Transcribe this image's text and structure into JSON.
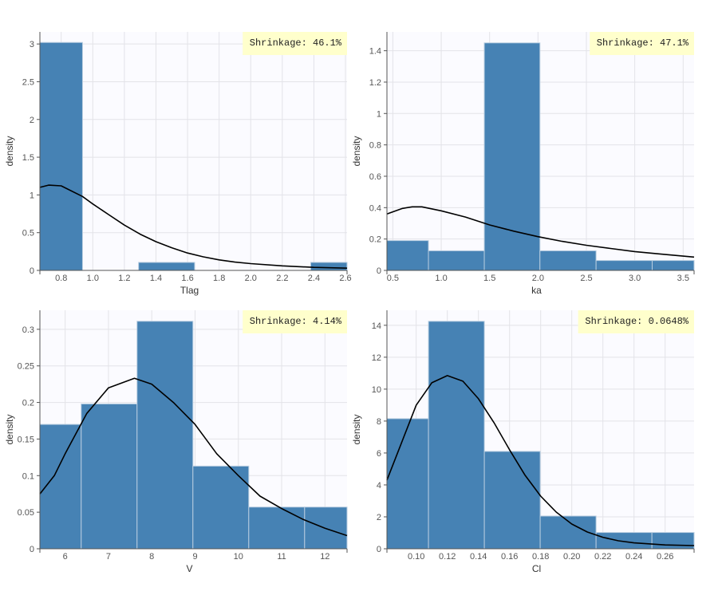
{
  "colors": {
    "bar": "#4682b4",
    "bar_edge": "#ffffff",
    "curve": "#000000",
    "plot_bg": "#fbfbff",
    "grid": "#e3e3e8",
    "shrinkage_bg": "#ffffcc"
  },
  "chart_data": [
    {
      "type": "bar",
      "xlabel": "Tlag",
      "ylabel": "density",
      "annotation": "Shrinkage: 46.1%",
      "xlim": [
        0.665,
        2.61
      ],
      "ylim": [
        0,
        3.16
      ],
      "xticks": [
        0.8,
        1.0,
        1.2,
        1.4,
        1.6,
        1.8,
        2.0,
        2.2,
        2.4,
        2.6
      ],
      "xtick_labels": [
        "0.8",
        "1.0",
        "1.2",
        "1.4",
        "1.6",
        "1.8",
        "2.0",
        "2.2",
        "2.4",
        "2.6"
      ],
      "yticks": [
        0,
        0.5,
        1,
        1.5,
        2,
        2.5,
        3
      ],
      "ytick_labels": [
        "0",
        "0.5",
        "1",
        "1.5",
        "2",
        "2.5",
        "3"
      ],
      "grid": true,
      "bins": [
        [
          0.665,
          0.935,
          3.02
        ],
        [
          1.29,
          1.645,
          0.106
        ],
        [
          2.38,
          2.61,
          0.106
        ]
      ],
      "density_curve": [
        [
          0.665,
          1.1
        ],
        [
          0.72,
          1.13
        ],
        [
          0.8,
          1.12
        ],
        [
          0.935,
          0.98
        ],
        [
          1.0,
          0.88
        ],
        [
          1.1,
          0.74
        ],
        [
          1.2,
          0.6
        ],
        [
          1.3,
          0.48
        ],
        [
          1.4,
          0.38
        ],
        [
          1.5,
          0.3
        ],
        [
          1.6,
          0.23
        ],
        [
          1.7,
          0.18
        ],
        [
          1.8,
          0.14
        ],
        [
          1.9,
          0.11
        ],
        [
          2.0,
          0.09
        ],
        [
          2.2,
          0.06
        ],
        [
          2.4,
          0.04
        ],
        [
          2.61,
          0.03
        ]
      ]
    },
    {
      "type": "bar",
      "xlabel": "ka",
      "ylabel": "density",
      "annotation": "Shrinkage: 47.1%",
      "xlim": [
        0.439,
        3.613
      ],
      "ylim": [
        0,
        1.52
      ],
      "xticks": [
        0.5,
        1.0,
        1.5,
        2.0,
        2.5,
        3.0,
        3.5
      ],
      "xtick_labels": [
        "0.5",
        "1.0",
        "1.5",
        "2.0",
        "2.5",
        "3.0",
        "3.5"
      ],
      "yticks": [
        0,
        0.2,
        0.4,
        0.6,
        0.8,
        1,
        1.2,
        1.4
      ],
      "ytick_labels": [
        "0",
        "0.2",
        "0.4",
        "0.6",
        "0.8",
        "1",
        "1.2",
        "1.4"
      ],
      "grid": true,
      "bins": [
        [
          0.439,
          0.868,
          0.19
        ],
        [
          0.868,
          1.445,
          0.125
        ],
        [
          1.445,
          2.02,
          1.45
        ],
        [
          2.02,
          2.6,
          0.125
        ],
        [
          2.6,
          3.18,
          0.063
        ],
        [
          3.18,
          3.613,
          0.063
        ]
      ],
      "density_curve": [
        [
          0.439,
          0.36
        ],
        [
          0.6,
          0.395
        ],
        [
          0.7,
          0.405
        ],
        [
          0.8,
          0.405
        ],
        [
          1.0,
          0.38
        ],
        [
          1.25,
          0.34
        ],
        [
          1.5,
          0.29
        ],
        [
          1.75,
          0.25
        ],
        [
          2.0,
          0.215
        ],
        [
          2.25,
          0.185
        ],
        [
          2.5,
          0.16
        ],
        [
          2.75,
          0.14
        ],
        [
          3.0,
          0.12
        ],
        [
          3.25,
          0.105
        ],
        [
          3.613,
          0.085
        ]
      ]
    },
    {
      "type": "bar",
      "xlabel": "V",
      "ylabel": "density",
      "annotation": "Shrinkage: 4.14%",
      "xlim": [
        5.416,
        12.51
      ],
      "ylim": [
        0,
        0.326
      ],
      "xticks": [
        6,
        7,
        8,
        9,
        10,
        11,
        12
      ],
      "xtick_labels": [
        "6",
        "7",
        "8",
        "9",
        "10",
        "11",
        "12"
      ],
      "yticks": [
        0,
        0.05,
        0.1,
        0.15,
        0.2,
        0.25,
        0.3
      ],
      "ytick_labels": [
        "0",
        "0.05",
        "0.1",
        "0.15",
        "0.2",
        "0.25",
        "0.3"
      ],
      "grid": true,
      "bins": [
        [
          5.416,
          6.37,
          0.17
        ],
        [
          6.37,
          7.66,
          0.198
        ],
        [
          7.66,
          8.95,
          0.311
        ],
        [
          8.95,
          10.24,
          0.113
        ],
        [
          10.24,
          11.53,
          0.057
        ],
        [
          11.53,
          12.51,
          0.057
        ]
      ],
      "density_curve": [
        [
          5.416,
          0.075
        ],
        [
          5.75,
          0.1
        ],
        [
          6.0,
          0.13
        ],
        [
          6.5,
          0.185
        ],
        [
          7.0,
          0.22
        ],
        [
          7.6,
          0.233
        ],
        [
          8.0,
          0.225
        ],
        [
          8.5,
          0.2
        ],
        [
          9.0,
          0.17
        ],
        [
          9.5,
          0.13
        ],
        [
          10.0,
          0.1
        ],
        [
          10.5,
          0.072
        ],
        [
          11.0,
          0.055
        ],
        [
          11.5,
          0.04
        ],
        [
          12.0,
          0.028
        ],
        [
          12.51,
          0.018
        ]
      ]
    },
    {
      "type": "bar",
      "xlabel": "Cl",
      "ylabel": "density",
      "annotation": "Shrinkage: 0.0648%",
      "xlim": [
        0.0812,
        0.2786
      ],
      "ylim": [
        0,
        14.94
      ],
      "xticks": [
        0.1,
        0.12,
        0.14,
        0.16,
        0.18,
        0.2,
        0.22,
        0.24,
        0.26
      ],
      "xtick_labels": [
        "0.10",
        "0.12",
        "0.14",
        "0.16",
        "0.18",
        "0.20",
        "0.22",
        "0.24",
        "0.26"
      ],
      "yticks": [
        0,
        2,
        4,
        6,
        8,
        10,
        12,
        14
      ],
      "ytick_labels": [
        "0",
        "2",
        "4",
        "6",
        "8",
        "10",
        "12",
        "14"
      ],
      "grid": true,
      "bins": [
        [
          0.0812,
          0.1079,
          8.15
        ],
        [
          0.1079,
          0.1438,
          14.25
        ],
        [
          0.1438,
          0.1797,
          6.1
        ],
        [
          0.1797,
          0.2156,
          2.05
        ],
        [
          0.2156,
          0.2515,
          1.02
        ],
        [
          0.2515,
          0.2786,
          1.02
        ]
      ],
      "density_curve": [
        [
          0.0812,
          4.3
        ],
        [
          0.09,
          6.5
        ],
        [
          0.1,
          9.0
        ],
        [
          0.11,
          10.4
        ],
        [
          0.12,
          10.85
        ],
        [
          0.13,
          10.5
        ],
        [
          0.14,
          9.4
        ],
        [
          0.15,
          7.9
        ],
        [
          0.16,
          6.2
        ],
        [
          0.17,
          4.6
        ],
        [
          0.18,
          3.3
        ],
        [
          0.19,
          2.3
        ],
        [
          0.2,
          1.55
        ],
        [
          0.21,
          1.05
        ],
        [
          0.22,
          0.72
        ],
        [
          0.23,
          0.5
        ],
        [
          0.24,
          0.37
        ],
        [
          0.26,
          0.24
        ],
        [
          0.2786,
          0.2
        ]
      ]
    }
  ]
}
